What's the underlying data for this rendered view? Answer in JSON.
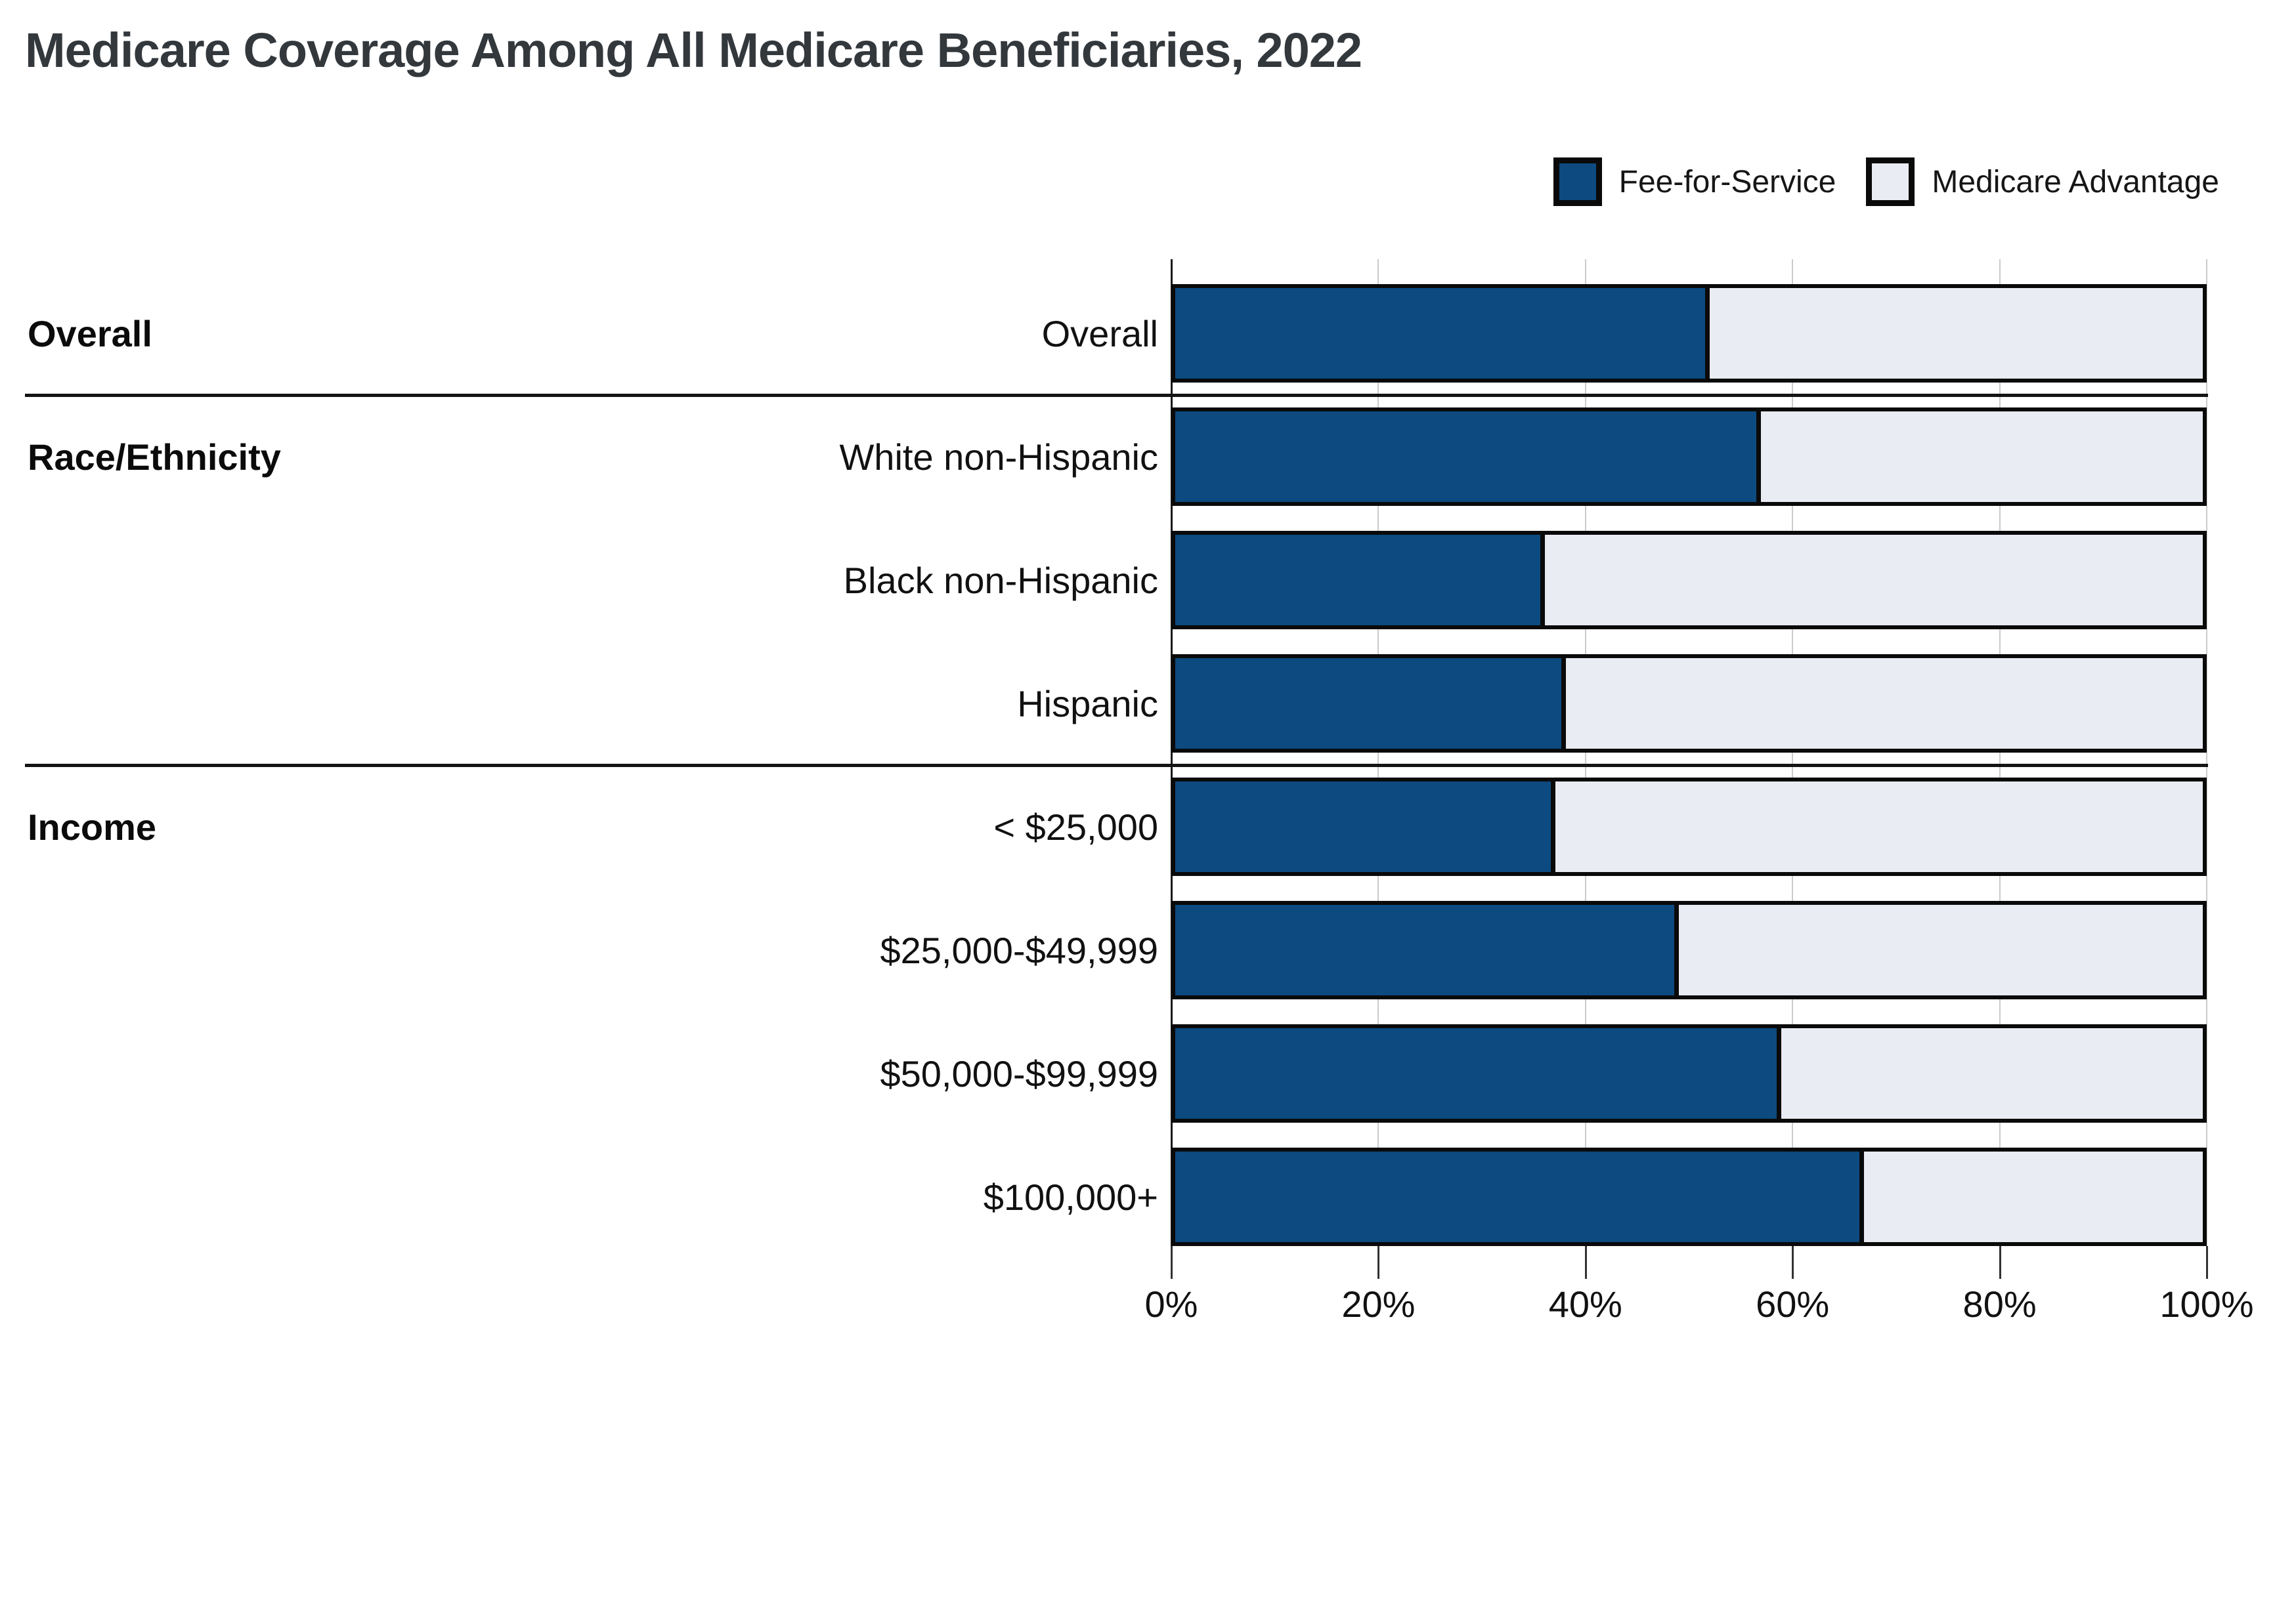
{
  "title": "Medicare Coverage Among All Medicare Beneficiaries, 2022",
  "colors": {
    "fee_for_service": "#0C4A80",
    "medicare_advantage": "#E9ECF2",
    "bar_border": "#0A0A0A",
    "gridline": "#CBCBCB",
    "axis": "#1A1A1A",
    "title_text": "#33383D",
    "label_text": "#111111"
  },
  "legend": [
    {
      "label": "Fee-for-Service",
      "color": "#0C4A80"
    },
    {
      "label": "Medicare Advantage",
      "color": "#E9ECF2"
    }
  ],
  "chart_data": {
    "type": "bar",
    "orientation": "horizontal",
    "stacked": true,
    "title": "Medicare Coverage Among All Medicare Beneficiaries, 2022",
    "grid": true,
    "legend_position": "top-right",
    "categories": [
      "Overall",
      "White non-Hispanic",
      "Black non-Hispanic",
      "Hispanic",
      "< $25,000",
      "$25,000-$49,999",
      "$50,000-$99,999",
      "$100,000+"
    ],
    "sections": [
      {
        "label": "Overall",
        "start": 0,
        "count": 1
      },
      {
        "label": "Race/Ethnicity",
        "start": 1,
        "count": 3
      },
      {
        "label": "Income",
        "start": 4,
        "count": 4
      }
    ],
    "series": [
      {
        "name": "Fee-for-Service",
        "color": "#0C4A80",
        "values": [
          52,
          57,
          36,
          38,
          37,
          49,
          59,
          67
        ]
      },
      {
        "name": "Medicare Advantage",
        "color": "#E9ECF2",
        "values": [
          48,
          43,
          64,
          62,
          63,
          51,
          41,
          33
        ]
      }
    ],
    "x_axis": {
      "min": 0,
      "max": 100,
      "tick_values": [
        0,
        20,
        40,
        60,
        80,
        100
      ],
      "tick_labels": [
        "0%",
        "20%",
        "40%",
        "60%",
        "80%",
        "100%"
      ]
    }
  }
}
